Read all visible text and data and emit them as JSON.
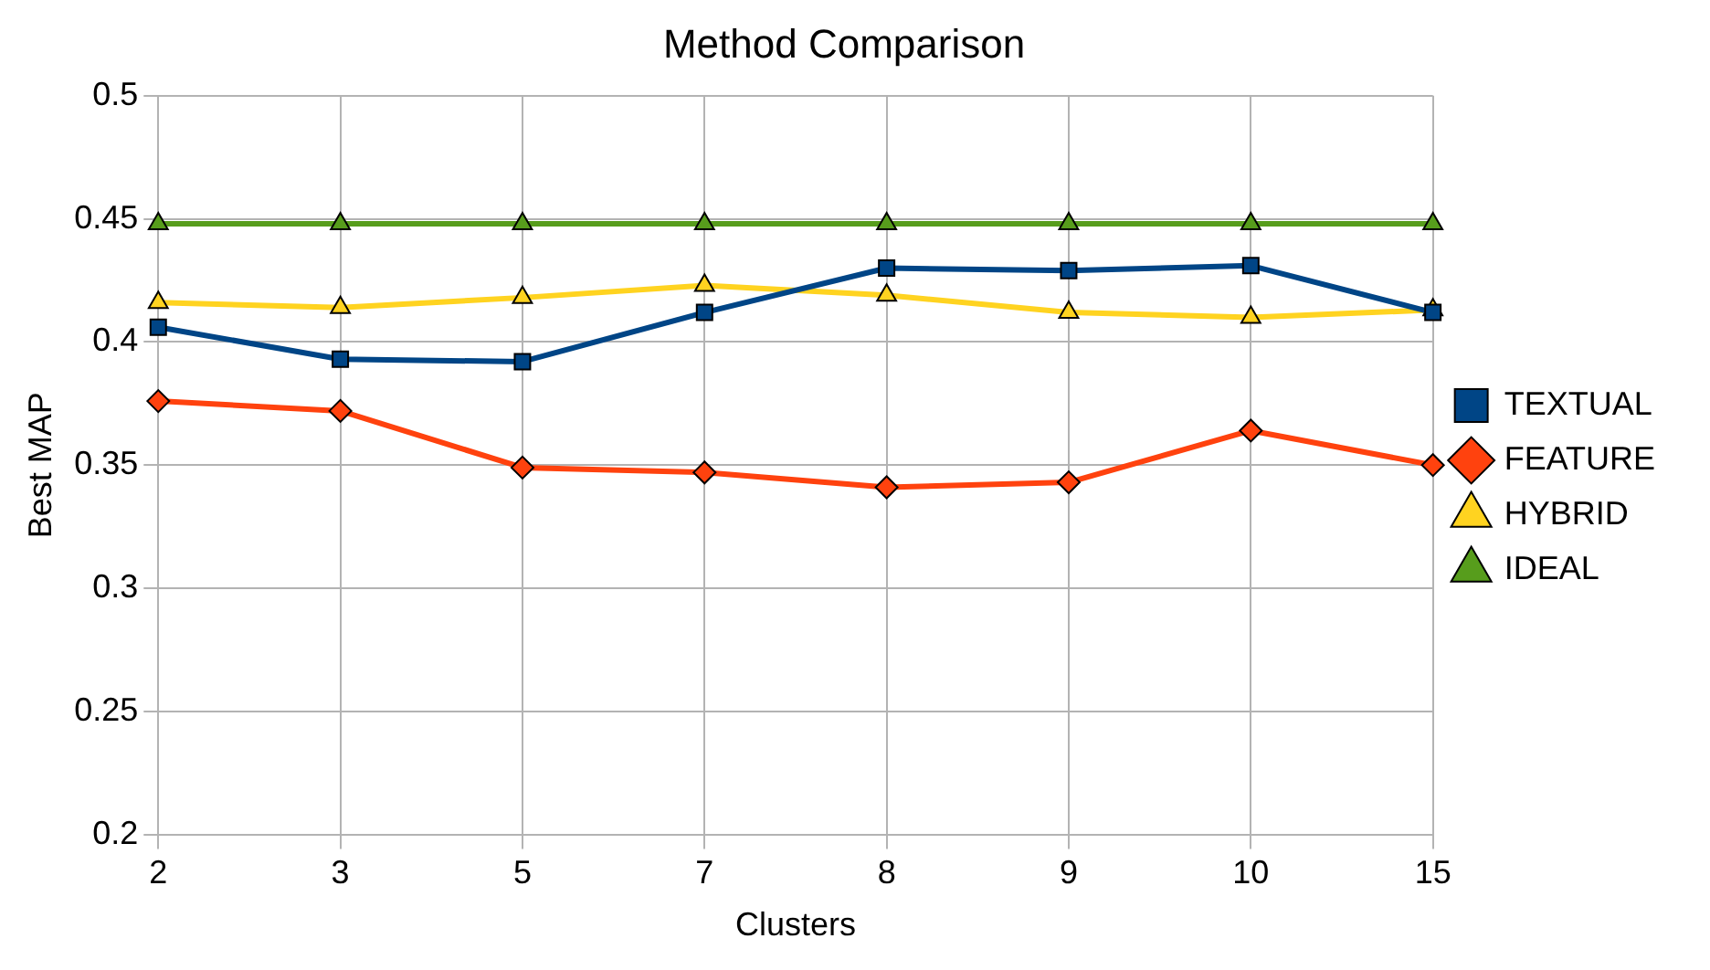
{
  "chart_data": {
    "type": "line",
    "title": "Method Comparison",
    "xlabel": "Clusters",
    "ylabel": "Best MAP",
    "categories": [
      "2",
      "3",
      "5",
      "7",
      "8",
      "9",
      "10",
      "15"
    ],
    "series": [
      {
        "name": "TEXTUAL",
        "color": "#004586",
        "marker": "square",
        "values": [
          0.406,
          0.393,
          0.392,
          0.412,
          0.43,
          0.429,
          0.431,
          0.412
        ]
      },
      {
        "name": "FEATURE",
        "color": "#ff420e",
        "marker": "diamond",
        "values": [
          0.376,
          0.372,
          0.349,
          0.347,
          0.341,
          0.343,
          0.364,
          0.35
        ]
      },
      {
        "name": "HYBRID",
        "color": "#ffd320",
        "marker": "triangle",
        "values": [
          0.416,
          0.414,
          0.418,
          0.423,
          0.419,
          0.412,
          0.41,
          0.413
        ]
      },
      {
        "name": "IDEAL",
        "color": "#579d1c",
        "marker": "triangle",
        "values": [
          0.448,
          0.448,
          0.448,
          0.448,
          0.448,
          0.448,
          0.448,
          0.448
        ]
      }
    ],
    "ylim": [
      0.2,
      0.5
    ],
    "yticks": [
      0.2,
      0.25,
      0.3,
      0.35,
      0.4,
      0.45,
      0.5
    ],
    "grid": true,
    "legend": "right",
    "line_style": "solid"
  }
}
